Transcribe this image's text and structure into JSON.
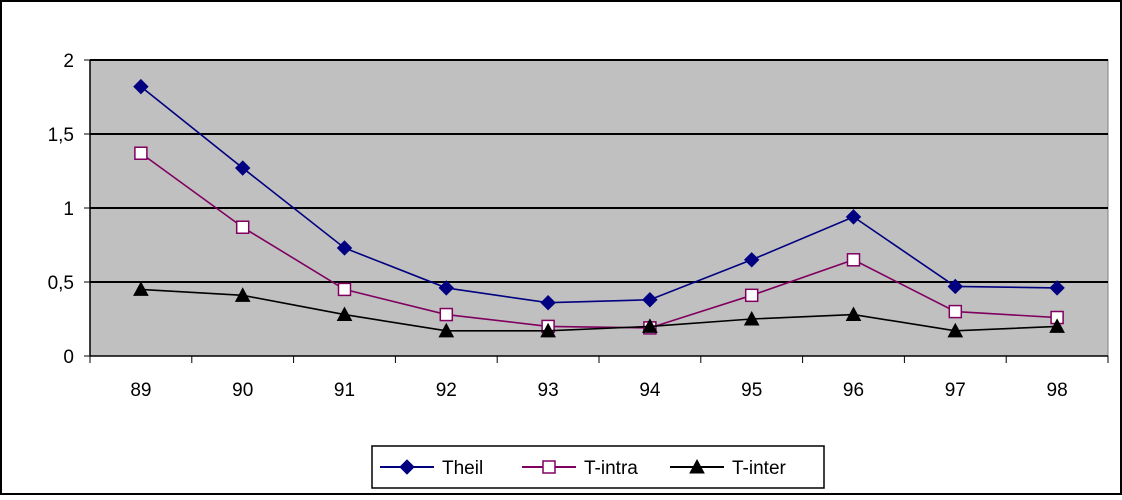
{
  "chart_data": {
    "type": "line",
    "title": "",
    "xlabel": "",
    "ylabel": "",
    "categories": [
      "89",
      "90",
      "91",
      "92",
      "93",
      "94",
      "95",
      "96",
      "97",
      "98"
    ],
    "y_tick_labels": [
      "0",
      "0,5",
      "1",
      "1,5",
      "2"
    ],
    "y_tick_values": [
      0,
      0.5,
      1,
      1.5,
      2
    ],
    "ylim": [
      0,
      2
    ],
    "grid": true,
    "legend_position": "bottom",
    "plot_background": "#c0c0c0",
    "series": [
      {
        "name": "Theil",
        "marker": "diamond",
        "color": "#000080",
        "values": [
          1.82,
          1.27,
          0.73,
          0.46,
          0.36,
          0.38,
          0.65,
          0.94,
          0.47,
          0.46
        ]
      },
      {
        "name": "T-intra",
        "marker": "square-open",
        "color": "#800060",
        "values": [
          1.37,
          0.87,
          0.45,
          0.28,
          0.2,
          0.19,
          0.41,
          0.65,
          0.3,
          0.26
        ]
      },
      {
        "name": "T-inter",
        "marker": "triangle",
        "color": "#000000",
        "values": [
          0.45,
          0.41,
          0.28,
          0.17,
          0.17,
          0.2,
          0.25,
          0.28,
          0.17,
          0.2
        ]
      }
    ]
  }
}
